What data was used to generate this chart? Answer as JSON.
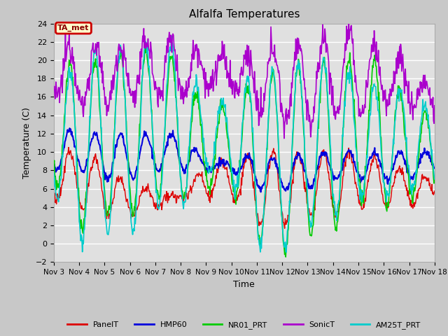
{
  "title": "Alfalfa Temperatures",
  "xlabel": "Time",
  "ylabel": "Temperature (C)",
  "ylim": [
    -2,
    24
  ],
  "yticks": [
    -2,
    0,
    2,
    4,
    6,
    8,
    10,
    12,
    14,
    16,
    18,
    20,
    22,
    24
  ],
  "annotation_text": "TA_met",
  "annotation_bg": "#ffffcc",
  "annotation_border": "#cc0000",
  "series_colors": {
    "PanelT": "#dd0000",
    "HMP60": "#0000dd",
    "NR01_PRT": "#00cc00",
    "SonicT": "#aa00cc",
    "AM25T_PRT": "#00cccc"
  },
  "date_start": 3,
  "date_end": 18,
  "num_points": 720,
  "xtick_positions": [
    3,
    4,
    5,
    6,
    7,
    8,
    9,
    10,
    11,
    12,
    13,
    14,
    15,
    16,
    17,
    18
  ],
  "xtick_labels": [
    "Nov 3",
    "Nov 4",
    "Nov 5",
    "Nov 6",
    "Nov 7",
    "Nov 8",
    "Nov 9",
    "Nov 10",
    "Nov 11",
    "Nov 12",
    "Nov 13",
    "Nov 14",
    "Nov 15",
    "Nov 16",
    "Nov 17",
    "Nov 18"
  ]
}
